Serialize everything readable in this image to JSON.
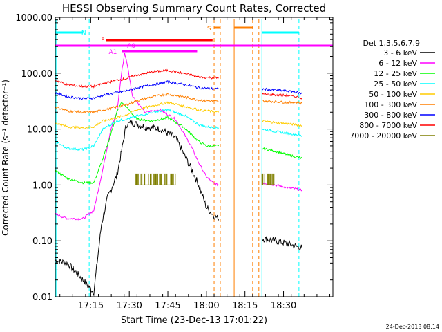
{
  "chart_data": {
    "type": "line",
    "title": "HESSI Observing Summary Count Rates, Corrected",
    "xlabel": "Start Time (23-Dec-13 17:01:22)",
    "ylabel": "Corrected Count Rate (s⁻¹ detector⁻¹)",
    "y_scale": "log",
    "ylim": [
      0.01,
      1000
    ],
    "xlim_minutes": [
      17.02,
      18.82
    ],
    "x_tick_values": [
      17.25,
      17.5,
      17.75,
      18.0,
      18.25,
      18.5
    ],
    "x_tick_labels": [
      "17:15",
      "17:30",
      "17:45",
      "18:00",
      "18:15",
      "18:30"
    ],
    "y_tick_values": [
      0.01,
      0.1,
      1,
      10,
      100,
      1000
    ],
    "y_tick_labels": [
      "0.01",
      "0.10",
      "1.00",
      "10.00",
      "100.00",
      "1000.00"
    ],
    "legend_title": "Det 1,3,5,6,7,9",
    "legend_position": "right",
    "series": [
      {
        "name": "3 - 6 keV",
        "color": "#000000",
        "points": [
          [
            17.02,
            0.045
          ],
          [
            17.1,
            0.04
          ],
          [
            17.2,
            0.02
          ],
          [
            17.27,
            0.012
          ],
          [
            17.32,
            0.2
          ],
          [
            17.36,
            0.6
          ],
          [
            17.42,
            1.5
          ],
          [
            17.45,
            4
          ],
          [
            17.48,
            12
          ],
          [
            17.52,
            13
          ],
          [
            17.6,
            11
          ],
          [
            17.7,
            10
          ],
          [
            17.8,
            7
          ],
          [
            17.9,
            2
          ],
          [
            17.95,
            1
          ],
          [
            18.0,
            0.4
          ],
          [
            18.05,
            0.28
          ],
          [
            18.08,
            0.25
          ]
        ]
      },
      {
        "name": "3 - 6 keV",
        "color": "#000000",
        "points": [
          [
            18.36,
            0.11
          ],
          [
            18.45,
            0.1
          ],
          [
            18.52,
            0.09
          ],
          [
            18.58,
            0.08
          ],
          [
            18.62,
            0.075
          ]
        ]
      },
      {
        "name": "6 - 12 keV",
        "color": "#ff00ff",
        "points": [
          [
            17.02,
            0.3
          ],
          [
            17.1,
            0.25
          ],
          [
            17.2,
            0.25
          ],
          [
            17.27,
            0.35
          ],
          [
            17.33,
            2
          ],
          [
            17.38,
            10
          ],
          [
            17.42,
            20
          ],
          [
            17.45,
            100
          ],
          [
            17.47,
            230
          ],
          [
            17.49,
            130
          ],
          [
            17.52,
            40
          ],
          [
            17.6,
            20
          ],
          [
            17.7,
            22
          ],
          [
            17.8,
            15
          ],
          [
            17.9,
            5
          ],
          [
            17.95,
            2.5
          ],
          [
            18.0,
            1.4
          ],
          [
            18.05,
            1.05
          ],
          [
            18.08,
            1.0
          ]
        ]
      },
      {
        "name": "6 - 12 keV",
        "color": "#ff00ff",
        "points": [
          [
            18.36,
            1.1
          ],
          [
            18.45,
            1.0
          ],
          [
            18.52,
            0.9
          ],
          [
            18.58,
            0.85
          ],
          [
            18.62,
            0.8
          ]
        ]
      },
      {
        "name": "12 - 25 keV",
        "color": "#00ff00",
        "points": [
          [
            17.02,
            1.8
          ],
          [
            17.1,
            1.3
          ],
          [
            17.2,
            1.1
          ],
          [
            17.27,
            1.1
          ],
          [
            17.33,
            3
          ],
          [
            17.38,
            8
          ],
          [
            17.42,
            20
          ],
          [
            17.45,
            30
          ],
          [
            17.48,
            25
          ],
          [
            17.55,
            15
          ],
          [
            17.65,
            14
          ],
          [
            17.75,
            16
          ],
          [
            17.85,
            11
          ],
          [
            17.95,
            6
          ],
          [
            18.0,
            5
          ],
          [
            18.08,
            5
          ]
        ]
      },
      {
        "name": "12 - 25 keV",
        "color": "#00ff00",
        "points": [
          [
            18.36,
            4.5
          ],
          [
            18.45,
            4.0
          ],
          [
            18.52,
            3.5
          ],
          [
            18.58,
            3.2
          ],
          [
            18.62,
            3.0
          ]
        ]
      },
      {
        "name": "25 - 50 keV",
        "color": "#00ffff",
        "points": [
          [
            17.02,
            6
          ],
          [
            17.1,
            4.5
          ],
          [
            17.2,
            4.3
          ],
          [
            17.27,
            5
          ],
          [
            17.33,
            10
          ],
          [
            17.42,
            14
          ],
          [
            17.48,
            15
          ],
          [
            17.55,
            17
          ],
          [
            17.65,
            20
          ],
          [
            17.75,
            22
          ],
          [
            17.85,
            18
          ],
          [
            17.95,
            12
          ],
          [
            18.0,
            11
          ],
          [
            18.08,
            10.5
          ]
        ]
      },
      {
        "name": "25 - 50 keV",
        "color": "#00ffff",
        "points": [
          [
            18.36,
            10
          ],
          [
            18.45,
            9
          ],
          [
            18.52,
            8.5
          ],
          [
            18.58,
            8
          ],
          [
            18.62,
            7.5
          ]
        ]
      },
      {
        "name": "50 - 100 keV",
        "color": "#ffcc00",
        "points": [
          [
            17.02,
            13
          ],
          [
            17.1,
            11
          ],
          [
            17.2,
            10.5
          ],
          [
            17.27,
            11
          ],
          [
            17.33,
            14
          ],
          [
            17.42,
            16
          ],
          [
            17.48,
            18
          ],
          [
            17.55,
            22
          ],
          [
            17.65,
            26
          ],
          [
            17.75,
            30
          ],
          [
            17.85,
            26
          ],
          [
            17.95,
            22
          ],
          [
            18.08,
            20
          ]
        ]
      },
      {
        "name": "50 - 100 keV",
        "color": "#ffcc00",
        "points": [
          [
            18.36,
            14
          ],
          [
            18.45,
            13
          ],
          [
            18.52,
            12.5
          ],
          [
            18.58,
            12
          ],
          [
            18.62,
            11.5
          ]
        ]
      },
      {
        "name": "100 - 300 keV",
        "color": "#ff7f00",
        "points": [
          [
            17.02,
            25
          ],
          [
            17.1,
            21
          ],
          [
            17.2,
            20
          ],
          [
            17.27,
            20
          ],
          [
            17.33,
            22
          ],
          [
            17.42,
            25
          ],
          [
            17.48,
            27
          ],
          [
            17.55,
            32
          ],
          [
            17.65,
            38
          ],
          [
            17.75,
            42
          ],
          [
            17.85,
            38
          ],
          [
            17.95,
            33
          ],
          [
            18.08,
            31
          ]
        ]
      },
      {
        "name": "100 - 300 keV",
        "color": "#ff7f00",
        "points": [
          [
            18.36,
            32
          ],
          [
            18.45,
            31
          ],
          [
            18.52,
            30
          ],
          [
            18.58,
            30
          ],
          [
            18.62,
            29
          ]
        ]
      },
      {
        "name": "300 - 800 keV",
        "color": "#0000ff",
        "points": [
          [
            17.02,
            45
          ],
          [
            17.1,
            38
          ],
          [
            17.2,
            35
          ],
          [
            17.27,
            36
          ],
          [
            17.33,
            40
          ],
          [
            17.42,
            45
          ],
          [
            17.48,
            48
          ],
          [
            17.55,
            55
          ],
          [
            17.65,
            62
          ],
          [
            17.75,
            70
          ],
          [
            17.85,
            63
          ],
          [
            17.95,
            55
          ],
          [
            18.08,
            52
          ]
        ]
      },
      {
        "name": "300 - 800 keV",
        "color": "#0000ff",
        "points": [
          [
            18.36,
            52
          ],
          [
            18.45,
            50
          ],
          [
            18.52,
            48
          ],
          [
            18.58,
            46
          ],
          [
            18.62,
            43
          ]
        ]
      },
      {
        "name": "800 - 7000 keV",
        "color": "#ff0000",
        "points": [
          [
            17.02,
            75
          ],
          [
            17.1,
            62
          ],
          [
            17.2,
            58
          ],
          [
            17.27,
            58
          ],
          [
            17.33,
            65
          ],
          [
            17.42,
            75
          ],
          [
            17.48,
            80
          ],
          [
            17.55,
            92
          ],
          [
            17.65,
            105
          ],
          [
            17.75,
            112
          ],
          [
            17.85,
            100
          ],
          [
            17.95,
            85
          ],
          [
            18.08,
            82
          ]
        ]
      },
      {
        "name": "800 - 7000 keV",
        "color": "#ff0000",
        "points": [
          [
            18.36,
            42
          ],
          [
            18.45,
            41
          ],
          [
            18.52,
            40
          ],
          [
            18.58,
            38
          ],
          [
            18.62,
            36
          ]
        ]
      },
      {
        "name": "7000 - 20000 keV",
        "color": "#7f7f00",
        "points": []
      }
    ],
    "annotations": [
      {
        "label": "N",
        "color": "#00ffff"
      },
      {
        "label": "F",
        "color": "#ff0000"
      },
      {
        "label": "S",
        "color": "#ff7f00"
      },
      {
        "label": "A1",
        "color": "#ff00ff"
      },
      {
        "label": "A0",
        "color": "#ff00ff"
      }
    ]
  },
  "footer_date": "24-Dec-2013 08:14"
}
